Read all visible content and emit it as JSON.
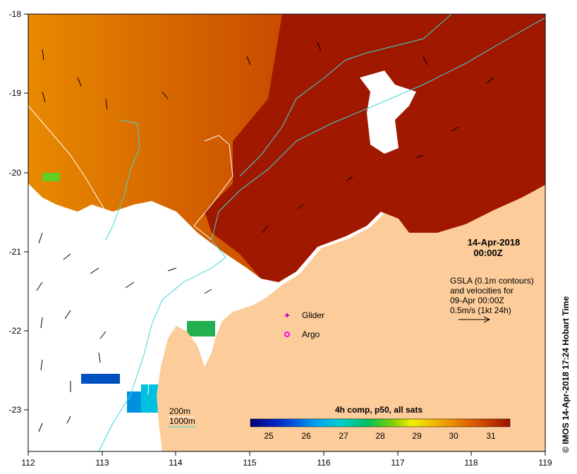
{
  "map": {
    "date_label": "14-Apr-2018",
    "time_label": "00:00Z",
    "gsla_lines": [
      "GSLA (0.1m contours)",
      "and velocities for",
      "09-Apr 00:00Z",
      "0.5m/s (1kt 24h)"
    ],
    "legend": {
      "glider_label": "Glider",
      "argo_label": "Argo",
      "depth_200_label": "200m",
      "depth_1000_label": "1000m"
    },
    "colorbar": {
      "title": "4h comp, p50, all sats",
      "ticks": [
        "25",
        "26",
        "27",
        "28",
        "29",
        "30",
        "31"
      ]
    },
    "x_ticks": [
      "112",
      "113",
      "114",
      "115",
      "116",
      "117",
      "118",
      "119"
    ],
    "y_ticks": [
      "-18",
      "-19",
      "-20",
      "-21",
      "-22",
      "-23"
    ],
    "credit": "© IMOS 14-Apr-2018 17:24 Hobart Time",
    "colors": {
      "land": "#fccc9a",
      "sst_hot": "#a01800",
      "sst_warm": "#c84a00",
      "sst_orange": "#e88a00",
      "contour_200m": "#ffffff",
      "contour_1000m": "#3cd8d8",
      "glider": "#cc00cc",
      "argo": "#ff00ff"
    }
  }
}
